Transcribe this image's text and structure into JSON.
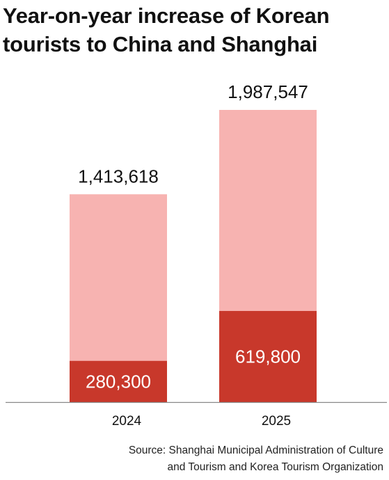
{
  "title": {
    "line1": "Year-on-year increase of Korean",
    "line2": "tourists to China and Shanghai"
  },
  "source": {
    "line1": "Source: Shanghai Municipal Administration of Culture",
    "line2": "and Tourism and Korea Tourism Organization"
  },
  "colors": {
    "china": "#f7b3b1",
    "shanghai": "#c8382b",
    "axis": "#888888"
  },
  "chart_data": {
    "type": "bar",
    "categories": [
      "2024",
      "2025"
    ],
    "series": [
      {
        "values": [
          1413618,
          1987547
        ],
        "labels": [
          "1,413,618",
          "1,987,547"
        ]
      },
      {
        "values": [
          280300,
          619800
        ],
        "labels": [
          "280,300",
          "619,800"
        ]
      }
    ],
    "ylim": [
      0,
      2000000
    ],
    "grid": false
  }
}
